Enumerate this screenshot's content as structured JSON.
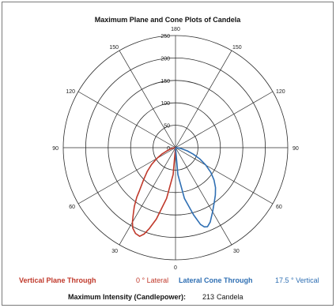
{
  "chart_data": {
    "type": "polar",
    "title": "Maximum Plane and Cone Plots of Candela",
    "radial_ticks": [
      0,
      50,
      100,
      150,
      200,
      250
    ],
    "rmax": 250,
    "angle_labels": {
      "top": "180",
      "bottom": "0",
      "left_upper_30": "150",
      "left_upper_60": "120",
      "left_90": "90",
      "left_lower_60": "60",
      "left_lower_30": "30",
      "right_upper_30": "150",
      "right_upper_60": "120",
      "right_90": "90",
      "right_lower_60": "60",
      "right_lower_30": "30"
    },
    "series": [
      {
        "name": "Vertical Plane Through 0 ° Lateral",
        "color": "#c0392b",
        "side": "left",
        "points": [
          [
            0,
            0
          ],
          [
            5,
            60
          ],
          [
            10,
            115
          ],
          [
            15,
            165
          ],
          [
            18,
            190
          ],
          [
            20,
            205
          ],
          [
            22,
            213
          ],
          [
            25,
            211
          ],
          [
            28,
            203
          ],
          [
            30,
            192
          ],
          [
            32,
            178
          ],
          [
            35,
            160
          ],
          [
            38,
            140
          ],
          [
            40,
            125
          ],
          [
            45,
            100
          ],
          [
            50,
            82
          ],
          [
            55,
            65
          ],
          [
            60,
            48
          ],
          [
            65,
            33
          ],
          [
            70,
            20
          ],
          [
            80,
            8
          ],
          [
            90,
            0
          ]
        ]
      },
      {
        "name": "Lateral Cone Through 17.5 ° Vertical",
        "color": "#2f6fb3",
        "side": "right",
        "points": [
          [
            0,
            0
          ],
          [
            5,
            60
          ],
          [
            10,
            115
          ],
          [
            15,
            155
          ],
          [
            18,
            180
          ],
          [
            20,
            188
          ],
          [
            22,
            190
          ],
          [
            25,
            183
          ],
          [
            30,
            165
          ],
          [
            35,
            150
          ],
          [
            40,
            138
          ],
          [
            45,
            126
          ],
          [
            50,
            112
          ],
          [
            55,
            96
          ],
          [
            60,
            78
          ],
          [
            65,
            60
          ],
          [
            70,
            42
          ],
          [
            75,
            27
          ],
          [
            80,
            14
          ],
          [
            85,
            6
          ],
          [
            90,
            0
          ]
        ]
      }
    ]
  },
  "legend": {
    "red_label": "Vertical Plane Through",
    "red_value": "0 ° Lateral",
    "blue_label": "Lateral Cone Through",
    "blue_value": "17.5 ° Vertical"
  },
  "footer": {
    "label": "Maximum Intensity (Candlepower):",
    "value": "213",
    "unit": "Candela"
  },
  "colors": {
    "grid": "#2b2b2b",
    "red": "#c0392b",
    "blue": "#2f6fb3"
  }
}
